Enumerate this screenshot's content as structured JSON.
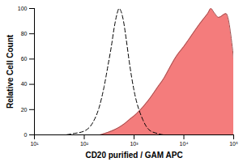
{
  "chart_data": {
    "type": "area",
    "x_label": "CD20 purified / GAM APC",
    "y_label": "Relative Cell Count",
    "x": [
      10,
      20,
      40,
      60,
      100,
      150,
      200,
      250,
      300,
      350,
      400,
      450,
      500,
      600,
      700,
      800,
      1000,
      1500,
      2000,
      3000,
      4000,
      5000,
      7000,
      10000,
      15000,
      20000,
      25000,
      30000,
      35000,
      40000,
      50000,
      70000,
      100000
    ],
    "series": [
      {
        "type": "area",
        "color": "#f47c7c",
        "line_style": "solid",
        "values": [
          0,
          0,
          0,
          0,
          0,
          0,
          0,
          1,
          2,
          3,
          4,
          5,
          6,
          8,
          10,
          12,
          15,
          22,
          28,
          38,
          45,
          52,
          62,
          70,
          80,
          87,
          92,
          96,
          100,
          97,
          93,
          96,
          60
        ]
      },
      {
        "type": "line",
        "color": "#000000",
        "line_style": "dashed",
        "values": [
          0,
          0,
          0,
          1,
          3,
          10,
          22,
          38,
          55,
          70,
          85,
          95,
          100,
          92,
          75,
          58,
          35,
          12,
          4,
          1,
          0,
          0,
          0,
          0,
          0,
          0,
          0,
          0,
          0,
          0,
          0,
          0,
          0
        ]
      }
    ],
    "log": "x",
    "grid": false,
    "xlim": [
      10,
      100000
    ],
    "xticks": [
      {
        "value": 10,
        "label": "10¹"
      },
      {
        "value": 100,
        "label": "10²"
      },
      {
        "value": 1000,
        "label": "10³"
      },
      {
        "value": 10000,
        "label": "10⁴"
      },
      {
        "value": 100000,
        "label": "10⁵"
      }
    ],
    "ylim": [
      0,
      100
    ],
    "yticks": [
      0,
      20,
      40,
      60,
      80,
      100
    ]
  }
}
